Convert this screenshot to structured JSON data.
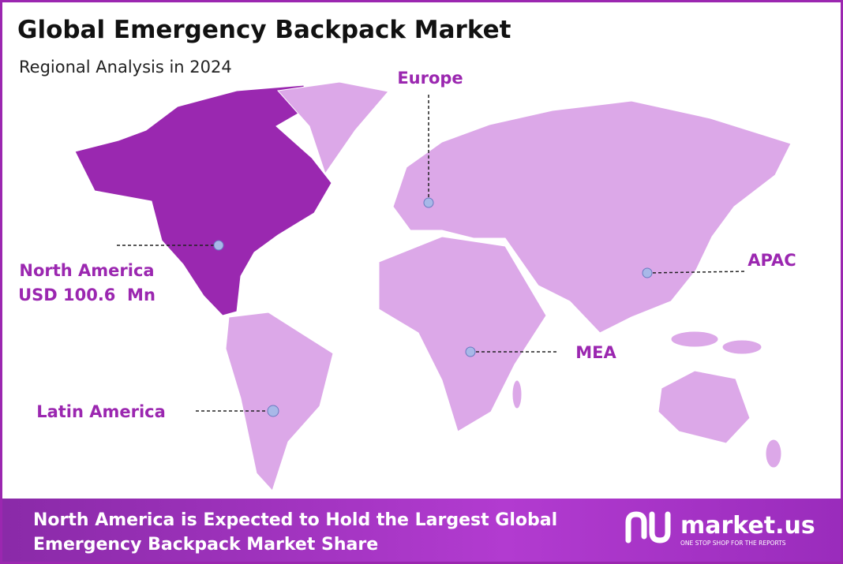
{
  "header": {
    "title": "Global Emergency Backpack Market",
    "subtitle": "Regional Analysis in 2024"
  },
  "regions": [
    {
      "label": "Europe"
    },
    {
      "label": "North America",
      "value": "USD 100.6  Mn"
    },
    {
      "label": "APAC"
    },
    {
      "label": "MEA"
    },
    {
      "label": "Latin America"
    }
  ],
  "footer": {
    "lines": [
      "North America is Expected to Hold the Largest Global",
      "Emergency Backpack Market Share"
    ],
    "logo": "market.us",
    "tagline": "ONE STOP SHOP FOR THE REPORTS"
  }
}
